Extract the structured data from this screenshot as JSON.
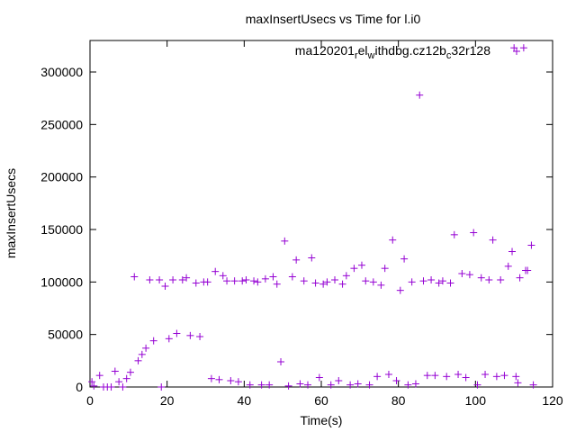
{
  "chart_data": {
    "type": "scatter",
    "title": "maxInsertUsecs vs Time for l.i0",
    "xlabel": "Time(s)",
    "ylabel": "maxInsertUsecs",
    "xlim": [
      0,
      120
    ],
    "ylim": [
      0,
      330000
    ],
    "x_ticks": [
      0,
      20,
      40,
      60,
      80,
      100,
      120
    ],
    "y_ticks": [
      0,
      50000,
      100000,
      150000,
      200000,
      250000,
      300000
    ],
    "x_tick_labels": [
      "0",
      "20",
      "40",
      "60",
      "80",
      "100",
      "120"
    ],
    "y_tick_labels": [
      "0",
      "50000",
      "100000",
      "150000",
      "200000",
      "250000",
      "300000"
    ],
    "grid": false,
    "legend_position": "top-right",
    "marker": "plus",
    "color": "#9400d3",
    "series": [
      {
        "name": "ma120201_rel_withdbg.cz12b_c32r128",
        "x": [
          0.5,
          1,
          2.5,
          3.5,
          4.5,
          5.5,
          6.5,
          7.5,
          8.5,
          9.5,
          10.5,
          11.5,
          12.5,
          13.5,
          14.5,
          15.5,
          16.5,
          18,
          18.5,
          19.5,
          20.5,
          21.5,
          22.5,
          24,
          25,
          26,
          27.5,
          28.5,
          29.5,
          30.5,
          31.5,
          32.5,
          33.5,
          34.5,
          35.5,
          36.5,
          37.5,
          38.5,
          39.5,
          40.5,
          41.5,
          42.5,
          43.5,
          44.5,
          45.5,
          46.5,
          47.5,
          48.5,
          49.5,
          50.5,
          51.5,
          52.5,
          53.5,
          54.5,
          55.5,
          56.5,
          57.5,
          58.5,
          59.5,
          60.5,
          61.5,
          62.5,
          63.5,
          64.5,
          65.5,
          66.5,
          67.5,
          68.5,
          69.5,
          70.5,
          71.5,
          72.5,
          73.5,
          74.5,
          75.5,
          76.5,
          77.5,
          78.5,
          79.5,
          80.5,
          81.5,
          82.5,
          83.5,
          84.5,
          85.5,
          86.5,
          87.5,
          88.5,
          89.5,
          90.5,
          91.5,
          92.5,
          93.5,
          94.5,
          95.5,
          96.5,
          97.5,
          98.5,
          99.5,
          100.5,
          101.5,
          102.5,
          103.5,
          104.5,
          105.5,
          106.5,
          107.5,
          108.5,
          109.5,
          110.5,
          111.5,
          112.5,
          113.5,
          114.5
        ],
        "y": [
          5000,
          1000,
          11000,
          0,
          0,
          0,
          15000,
          5000,
          0,
          8000,
          14000,
          105000,
          25000,
          31000,
          37000,
          102000,
          44000,
          102000,
          0,
          96000,
          46000,
          102000,
          51000,
          102000,
          104000,
          49000,
          99000,
          48000,
          100000,
          100000,
          8000,
          110000,
          7000,
          106000,
          101000,
          6000,
          101000,
          5000,
          101000,
          102000,
          2000,
          101000,
          100000,
          2000,
          103000,
          2000,
          105000,
          98000,
          24000,
          139000,
          1000,
          105000,
          121000,
          3000,
          101000,
          2000,
          123000,
          99000,
          9000,
          98000,
          100000,
          2000,
          102000,
          6000,
          98000,
          106000,
          2000,
          113000,
          3000,
          116000,
          101000,
          2000,
          100000,
          10000,
          97000,
          113000,
          12000,
          140000,
          6000,
          92000,
          122000,
          2000,
          100000,
          3000,
          278000,
          101000,
          11000,
          102000,
          11000,
          99000,
          101000,
          10000,
          99000,
          145000,
          12000,
          108000,
          9000,
          107000,
          147000,
          2000,
          104000,
          12000,
          102000,
          140000,
          10000,
          102000,
          11000,
          115000,
          129000,
          10000,
          104000,
          323000,
          111000,
          135000
        ],
        "points_override": [
          [
            115,
            2000
          ],
          [
            111,
            4000
          ],
          [
            113,
            111000
          ],
          [
            110,
            323000
          ]
        ]
      }
    ]
  }
}
